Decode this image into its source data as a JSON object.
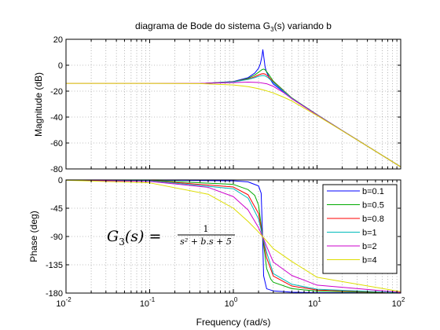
{
  "chart_data": [
    {
      "type": "line",
      "title": "diagrama de Bode do sistema G",
      "title_sub": "3",
      "title_suffix": "(s) variando b",
      "ylabel": "Magnitude (dB)",
      "xscale": "log",
      "xlim": [
        0.01,
        100
      ],
      "ylim": [
        -80,
        20
      ],
      "yticks": [
        "20",
        "0",
        "-20",
        "-40",
        "-60",
        "-80"
      ],
      "yticks_values": [
        20,
        0,
        -20,
        -40,
        -60,
        -80
      ],
      "grid": true,
      "series": [
        {
          "b": 0.1,
          "x": [
            0.4,
            1,
            1.5,
            1.8,
            2.0,
            2.1,
            2.2,
            2.25,
            2.3,
            2.4,
            2.5,
            2.7,
            3,
            5,
            10,
            20,
            50,
            100
          ],
          "y": [
            -14.2,
            -12.6,
            -9.6,
            -6.1,
            -2.4,
            1.0,
            7.1,
            12.0,
            7.4,
            -1.7,
            -5.4,
            -10.0,
            -14.5,
            -25.3,
            -38.1,
            -50.4,
            -66.3,
            -78.4
          ]
        },
        {
          "b": 0.5,
          "x": [
            0.4,
            1,
            1.5,
            1.8,
            2.0,
            2.2,
            2.3,
            2.4,
            2.6,
            3,
            5,
            10,
            20,
            50,
            100
          ],
          "y": [
            -14.2,
            -12.7,
            -10.2,
            -7.6,
            -5.4,
            -3.4,
            -3.0,
            -3.6,
            -6.4,
            -12.3,
            -25.2,
            -38.1,
            -50.4,
            -66.3,
            -78.4
          ]
        },
        {
          "b": 0.8,
          "x": [
            0.4,
            1,
            1.5,
            1.8,
            2.0,
            2.2,
            2.3,
            2.4,
            2.6,
            3,
            5,
            10,
            20,
            50,
            100
          ],
          "y": [
            -14.2,
            -12.8,
            -10.7,
            -8.9,
            -7.5,
            -6.6,
            -6.5,
            -6.9,
            -8.5,
            -12.9,
            -25.4,
            -38.1,
            -50.4,
            -66.3,
            -78.4
          ]
        },
        {
          "b": 1,
          "x": [
            0.4,
            1,
            1.5,
            1.8,
            2.0,
            2.2,
            2.3,
            2.4,
            2.6,
            3,
            5,
            10,
            20,
            50,
            100
          ],
          "y": [
            -14.2,
            -12.9,
            -11.0,
            -9.6,
            -8.6,
            -8.0,
            -8.0,
            -8.3,
            -9.6,
            -13.3,
            -25.5,
            -38.2,
            -50.4,
            -66.3,
            -78.4
          ]
        },
        {
          "b": 2,
          "x": [
            0.01,
            0.1,
            0.4,
            1,
            1.5,
            2,
            2.5,
            3,
            4,
            5,
            10,
            20,
            50,
            100
          ],
          "y": [
            -14.0,
            -14.0,
            -14.0,
            -13.4,
            -13.0,
            -13.3,
            -14.3,
            -16.3,
            -21.2,
            -25.9,
            -38.4,
            -50.5,
            -66.3,
            -78.4
          ]
        },
        {
          "b": 4,
          "x": [
            0.01,
            0.1,
            0.4,
            1,
            1.5,
            2,
            2.5,
            3,
            4,
            5,
            10,
            20,
            50,
            100
          ],
          "y": [
            -14.0,
            -14.0,
            -14.2,
            -15.2,
            -16.5,
            -18.1,
            -19.8,
            -21.4,
            -24.7,
            -27.6,
            -38.8,
            -50.6,
            -66.3,
            -78.4
          ]
        }
      ]
    },
    {
      "type": "line",
      "xlabel": "Frequency  (rad/s)",
      "ylabel": "Phase (deg)",
      "xscale": "log",
      "xlim": [
        0.01,
        100
      ],
      "ylim": [
        -180,
        0
      ],
      "xticks": [
        "10",
        "10",
        "10",
        "10",
        "10"
      ],
      "xticks_exp": [
        "-2",
        "-1",
        "0",
        "1",
        "2"
      ],
      "xticks_values": [
        0.01,
        0.1,
        1,
        10,
        100
      ],
      "yticks": [
        "0",
        "-45",
        "-90",
        "-135",
        "-180"
      ],
      "yticks_values": [
        0,
        -45,
        -90,
        -135,
        -180
      ],
      "grid": true,
      "legend_position": "right",
      "annotation": {
        "lhs": "G",
        "lhs_sub": "3",
        "lhs_arg": "(s) =",
        "numerator": "1",
        "denominator": "s² + b.s + 5"
      },
      "series": [
        {
          "name": "b=0.1",
          "color": "#0000ff",
          "x": [
            0.01,
            0.1,
            1,
            1.5,
            2.0,
            2.15,
            2.236,
            2.3,
            2.5,
            3,
            5,
            10,
            100
          ],
          "y": [
            0,
            -0.1,
            -1.4,
            -3.1,
            -9.5,
            -21.2,
            -90,
            -152.7,
            -173.2,
            -176.5,
            -178.6,
            -179.4,
            -179.9
          ]
        },
        {
          "name": "b=0.5",
          "color": "#00aa00",
          "x": [
            0.01,
            0.1,
            1,
            1.5,
            1.8,
            2.0,
            2.236,
            2.5,
            2.8,
            3,
            5,
            10,
            100
          ],
          "y": [
            -0.1,
            -0.6,
            -7.1,
            -15.4,
            -24.5,
            -40.0,
            -90,
            -141.0,
            -157.9,
            -162.7,
            -173.0,
            -176.9,
            -179.7
          ]
        },
        {
          "name": "b=0.8",
          "color": "#ff0000",
          "x": [
            0.01,
            0.1,
            1,
            1.5,
            2.0,
            2.236,
            2.5,
            3,
            5,
            10,
            100
          ],
          "y": [
            -0.1,
            -0.9,
            -11.3,
            -23.6,
            -53.5,
            -90,
            -124.0,
            -152.9,
            -168.8,
            -175.1,
            -179.5
          ]
        },
        {
          "name": "b=1",
          "color": "#00bbbb",
          "x": [
            0.01,
            0.1,
            1,
            1.5,
            2.0,
            2.236,
            2.5,
            3,
            5,
            10,
            100
          ],
          "y": [
            -0.1,
            -1.2,
            -14.0,
            -28.9,
            -62.1,
            -90,
            -114.9,
            -149.0,
            -166.0,
            -173.9,
            -179.4
          ]
        },
        {
          "name": "b=2",
          "color": "#cc00cc",
          "x": [
            0.01,
            0.1,
            0.5,
            1,
            1.5,
            2.0,
            2.236,
            2.5,
            3,
            5,
            10,
            100
          ],
          "y": [
            -0.2,
            -2.3,
            -11.8,
            -26.6,
            -47.8,
            -75.9,
            -90,
            -105.8,
            -130.6,
            -152.0,
            -167.4,
            -178.9
          ]
        },
        {
          "name": "b=4",
          "color": "#dddd00",
          "x": [
            0.01,
            0.1,
            0.5,
            1,
            1.5,
            2.0,
            2.236,
            2.5,
            3,
            5,
            10,
            100
          ],
          "y": [
            -0.5,
            -4.6,
            -22.8,
            -45.0,
            -66.1,
            -82.9,
            -90,
            -97.3,
            -109.3,
            -129.8,
            -154.9,
            -177.7
          ]
        }
      ]
    }
  ]
}
